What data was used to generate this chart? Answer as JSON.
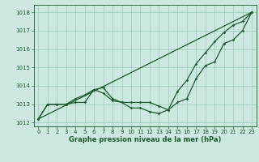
{
  "xlabel": "Graphe pression niveau de la mer (hPa)",
  "ylim": [
    1011.8,
    1018.4
  ],
  "xlim": [
    -0.5,
    23.5
  ],
  "yticks": [
    1012,
    1013,
    1014,
    1015,
    1016,
    1017,
    1018
  ],
  "xticks": [
    0,
    1,
    2,
    3,
    4,
    5,
    6,
    7,
    8,
    9,
    10,
    11,
    12,
    13,
    14,
    15,
    16,
    17,
    18,
    19,
    20,
    21,
    22,
    23
  ],
  "bg_color": "#cce8e0",
  "grid_color": "#99ccbb",
  "line_color": "#1a5c2a",
  "line1_x": [
    0,
    1,
    2,
    3,
    4,
    5,
    6,
    7,
    8,
    9,
    10,
    11,
    12,
    13,
    14,
    15,
    16,
    17,
    18,
    19,
    20,
    21,
    22,
    23
  ],
  "line1_y": [
    1012.2,
    1013.0,
    1013.0,
    1013.0,
    1013.1,
    1013.1,
    1013.8,
    1013.6,
    1013.2,
    1013.1,
    1012.8,
    1012.8,
    1012.6,
    1012.5,
    1012.7,
    1013.1,
    1013.3,
    1014.4,
    1015.1,
    1015.3,
    1016.3,
    1016.5,
    1017.0,
    1018.0
  ],
  "line2_x": [
    0,
    1,
    2,
    3,
    4,
    5,
    6,
    7,
    8,
    9,
    10,
    11,
    12,
    13,
    14,
    15,
    16,
    17,
    18,
    19,
    20,
    21,
    22,
    23
  ],
  "line2_y": [
    1012.2,
    1013.0,
    1013.0,
    1013.0,
    1013.3,
    1013.5,
    1013.8,
    1013.9,
    1013.3,
    1013.1,
    1013.1,
    1013.1,
    1013.1,
    1012.9,
    1012.7,
    1013.7,
    1014.3,
    1015.2,
    1015.8,
    1016.4,
    1016.9,
    1017.3,
    1017.5,
    1018.0
  ],
  "line3_x": [
    0,
    23
  ],
  "line3_y": [
    1012.2,
    1018.0
  ],
  "ylabel_fontsize": 5,
  "xlabel_fontsize": 6,
  "tick_fontsize": 5
}
